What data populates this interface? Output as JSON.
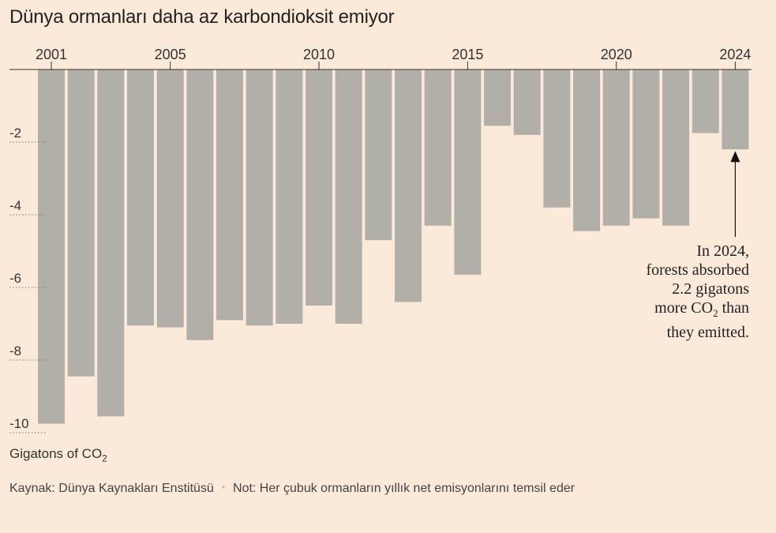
{
  "chart_data": {
    "type": "bar",
    "title": "Dünya ormanları daha az karbondioksit emiyor",
    "categories": [
      "2001",
      "2002",
      "2003",
      "2004",
      "2005",
      "2006",
      "2007",
      "2008",
      "2009",
      "2010",
      "2011",
      "2012",
      "2013",
      "2014",
      "2015",
      "2016",
      "2017",
      "2018",
      "2019",
      "2020",
      "2021",
      "2022",
      "2023",
      "2024"
    ],
    "values": [
      -9.75,
      -8.45,
      -9.55,
      -7.05,
      -7.1,
      -7.45,
      -6.9,
      -7.05,
      -7.0,
      -6.5,
      -7.0,
      -4.7,
      -6.4,
      -4.3,
      -5.65,
      -1.55,
      -1.8,
      -3.8,
      -4.45,
      -4.3,
      -4.1,
      -4.3,
      -1.75,
      -2.2
    ],
    "x_tick_labels": [
      "2001",
      "2005",
      "2010",
      "2015",
      "2020",
      "2024"
    ],
    "y_ticks": [
      -2,
      -4,
      -6,
      -8,
      -10
    ],
    "y_tick_labels": [
      "-2",
      "-4",
      "-6",
      "-8",
      "-10"
    ],
    "ylim": [
      -10,
      0
    ],
    "ylabel": "Gigatons of CO",
    "ylabel_sub": "2",
    "bar_color": "#b2afa9",
    "annotation": {
      "target": "2024",
      "lines": [
        "In 2024,",
        "forests absorbed",
        "2.2 gigatons",
        "more CO",
        "2",
        " than",
        "they emitted."
      ]
    }
  },
  "footer": {
    "source": "Kaynak: Dünya Kaynakları Enstitüsü",
    "separator": "•",
    "note": "Not: Her çubuk ormanların yıllık net emisyonlarını temsil eder"
  },
  "colors": {
    "background": "#fbe9da",
    "bar": "#b2afa9",
    "axis": "#333333"
  }
}
